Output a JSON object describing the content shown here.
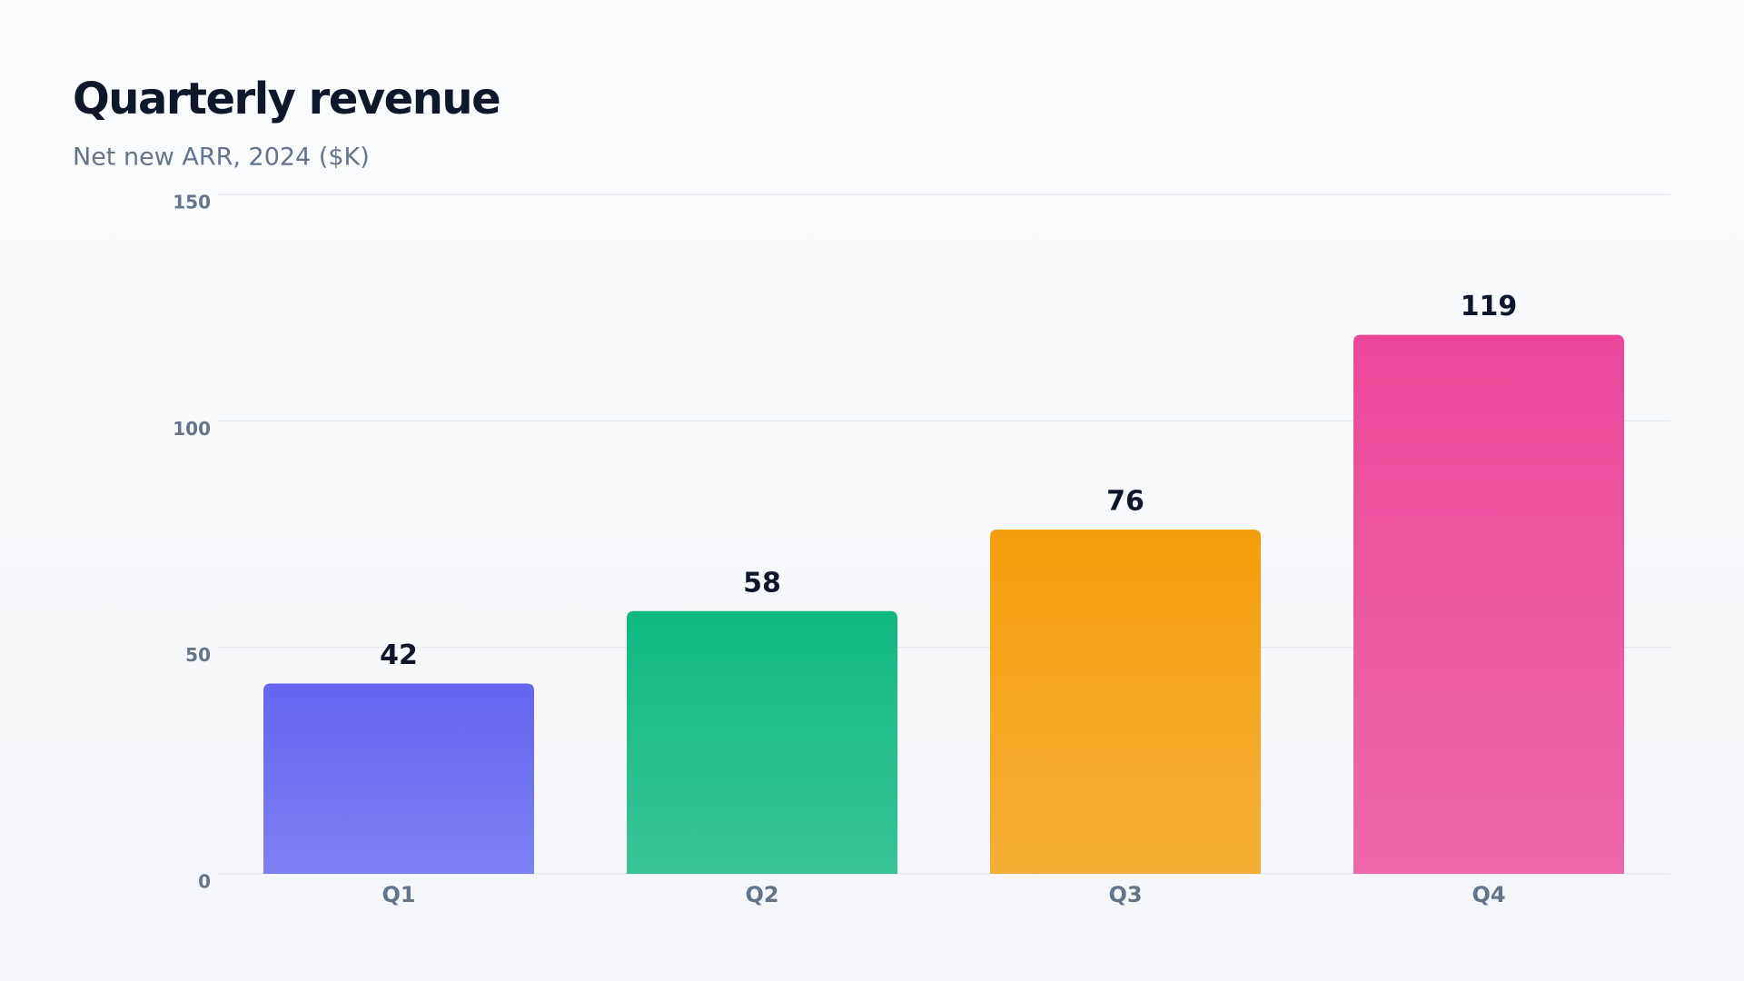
{
  "chart_data": {
    "type": "bar",
    "title": "Quarterly revenue",
    "subtitle": "Net new ARR, 2024 ($K)",
    "categories": [
      "Q1",
      "Q2",
      "Q3",
      "Q4"
    ],
    "values": [
      42,
      58,
      76,
      119
    ],
    "colors": [
      "#6366f1",
      "#10b981",
      "#f59e0b",
      "#ec4899"
    ],
    "ylim": [
      0,
      150
    ],
    "yticks": [
      0,
      50,
      100,
      150
    ],
    "grid": true
  }
}
